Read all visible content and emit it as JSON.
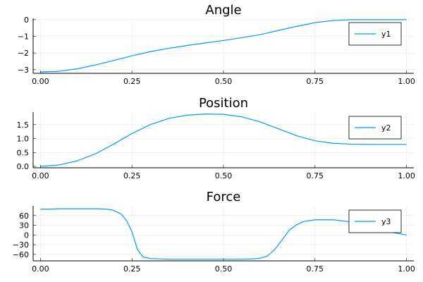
{
  "series_color": "#009af9",
  "chart_data": [
    {
      "type": "line",
      "title": "Angle",
      "xlabel": "",
      "ylabel": "",
      "xlim": [
        -0.02,
        1.02
      ],
      "ylim": [
        -3.22,
        0.08
      ],
      "xticks": [
        0.0,
        0.25,
        0.5,
        0.75,
        1.0
      ],
      "xtick_labels": [
        "0.00",
        "0.25",
        "0.50",
        "0.75",
        "1.00"
      ],
      "yticks": [
        0,
        -1,
        -2,
        -3
      ],
      "ytick_labels": [
        "0",
        "−1",
        "−2",
        "−3"
      ],
      "grid": true,
      "legend": "top-right",
      "series": [
        {
          "name": "y1",
          "x": [
            0.0,
            0.05,
            0.1,
            0.15,
            0.2,
            0.25,
            0.3,
            0.35,
            0.4,
            0.45,
            0.5,
            0.55,
            0.6,
            0.65,
            0.7,
            0.75,
            0.8,
            0.85,
            0.9,
            0.95,
            1.0
          ],
          "y": [
            -3.14,
            -3.1,
            -2.95,
            -2.72,
            -2.45,
            -2.17,
            -1.92,
            -1.72,
            -1.55,
            -1.4,
            -1.25,
            -1.08,
            -0.9,
            -0.65,
            -0.4,
            -0.18,
            -0.05,
            0.0,
            0.0,
            0.0,
            0.0
          ]
        }
      ]
    },
    {
      "type": "line",
      "title": "Position",
      "xlabel": "",
      "ylabel": "",
      "xlim": [
        -0.02,
        1.02
      ],
      "ylim": [
        -0.05,
        1.95
      ],
      "xticks": [
        0.0,
        0.25,
        0.5,
        0.75,
        1.0
      ],
      "xtick_labels": [
        "0.00",
        "0.25",
        "0.50",
        "0.75",
        "1.00"
      ],
      "yticks": [
        0.0,
        0.5,
        1.0,
        1.5
      ],
      "ytick_labels": [
        "0.0",
        "0.5",
        "1.0",
        "1.5"
      ],
      "grid": true,
      "legend": "top-right",
      "series": [
        {
          "name": "y2",
          "x": [
            0.0,
            0.05,
            0.1,
            0.15,
            0.2,
            0.25,
            0.3,
            0.35,
            0.4,
            0.45,
            0.5,
            0.55,
            0.6,
            0.65,
            0.7,
            0.75,
            0.8,
            0.85,
            0.9,
            0.95,
            1.0
          ],
          "y": [
            0.0,
            0.05,
            0.2,
            0.45,
            0.8,
            1.18,
            1.5,
            1.72,
            1.84,
            1.88,
            1.87,
            1.78,
            1.6,
            1.35,
            1.1,
            0.92,
            0.83,
            0.8,
            0.79,
            0.79,
            0.79
          ]
        }
      ]
    },
    {
      "type": "line",
      "title": "Force",
      "xlabel": "",
      "ylabel": "",
      "xlim": [
        -0.02,
        1.02
      ],
      "ylim": [
        -80,
        90
      ],
      "xticks": [
        0.0,
        0.25,
        0.5,
        0.75,
        1.0
      ],
      "xtick_labels": [
        "0.00",
        "0.25",
        "0.50",
        "0.75",
        "1.00"
      ],
      "yticks": [
        60,
        30,
        0,
        -30,
        -60
      ],
      "ytick_labels": [
        "60",
        "30",
        "0",
        "−30",
        "−60"
      ],
      "grid": true,
      "legend": "top-right",
      "series": [
        {
          "name": "y3",
          "x": [
            0.0,
            0.025,
            0.05,
            0.1,
            0.15,
            0.18,
            0.2,
            0.22,
            0.235,
            0.25,
            0.265,
            0.28,
            0.3,
            0.35,
            0.4,
            0.45,
            0.5,
            0.55,
            0.58,
            0.6,
            0.62,
            0.64,
            0.66,
            0.68,
            0.7,
            0.72,
            0.75,
            0.8,
            0.85,
            0.9,
            0.95,
            1.0
          ],
          "y": [
            80,
            80,
            81,
            81,
            81,
            80,
            76,
            65,
            45,
            10,
            -45,
            -68,
            -73,
            -75,
            -75,
            -75,
            -75,
            -75,
            -74,
            -72,
            -65,
            -45,
            -15,
            15,
            32,
            42,
            47,
            47,
            40,
            27,
            10,
            0
          ]
        }
      ]
    }
  ]
}
